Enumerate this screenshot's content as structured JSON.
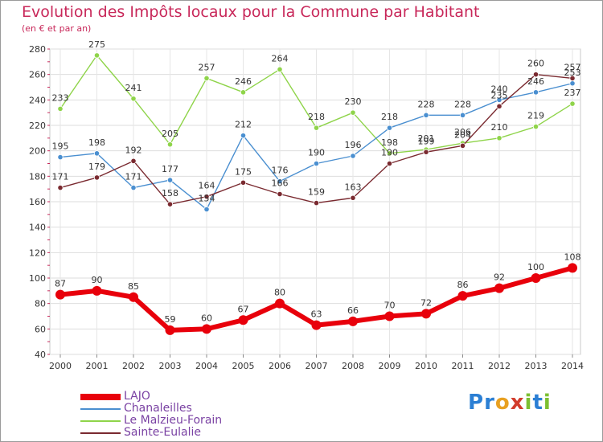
{
  "header": {
    "title": "Evolution des Impôts locaux pour la Commune par Habitant",
    "subtitle": "(en € et par an)"
  },
  "logo": {
    "text": "Proxiti",
    "letters": [
      {
        "ch": "P",
        "color": "#2b7fd4"
      },
      {
        "ch": "r",
        "color": "#2b7fd4"
      },
      {
        "ch": "o",
        "color": "#e8a020"
      },
      {
        "ch": "x",
        "color": "#d23c2c"
      },
      {
        "ch": "i",
        "color": "#7cbf32"
      },
      {
        "ch": "t",
        "color": "#2b7fd4"
      },
      {
        "ch": "i",
        "color": "#7cbf32"
      }
    ]
  },
  "chart_data": {
    "type": "line",
    "title": "Evolution des Impôts locaux pour la Commune par Habitant",
    "subtitle": "(en € et par an)",
    "xlabel": "",
    "ylabel": "",
    "x": [
      "2000",
      "2001",
      "2002",
      "2003",
      "2004",
      "2005",
      "2006",
      "2007",
      "2008",
      "2009",
      "2010",
      "2011",
      "2012",
      "2013",
      "2014"
    ],
    "ylim": [
      40,
      280
    ],
    "yticks": [
      40,
      60,
      80,
      100,
      120,
      140,
      160,
      180,
      200,
      220,
      240,
      260,
      280
    ],
    "grid": true,
    "legend_position": "bottom-left",
    "series": [
      {
        "name": "LAJO",
        "color": "#e8000b",
        "values": [
          87,
          90,
          85,
          59,
          60,
          67,
          80,
          63,
          66,
          70,
          72,
          86,
          92,
          100,
          108
        ]
      },
      {
        "name": "Chanaleilles",
        "color": "#4a8fd0",
        "values": [
          195,
          198,
          171,
          177,
          154,
          212,
          176,
          190,
          196,
          218,
          228,
          228,
          240,
          246,
          253
        ]
      },
      {
        "name": "Le Malzieu-Forain",
        "color": "#8fd44a",
        "values": [
          233,
          275,
          241,
          205,
          257,
          246,
          264,
          218,
          230,
          198,
          201,
          206,
          210,
          219,
          237
        ]
      },
      {
        "name": "Sainte-Eulalie",
        "color": "#7a2a30",
        "values": [
          171,
          179,
          192,
          158,
          164,
          175,
          166,
          159,
          163,
          190,
          199,
          204,
          235,
          260,
          257
        ]
      }
    ],
    "data_labels": [
      {
        "series": 0,
        "labels": [
          "87",
          "90",
          "85",
          "59",
          "60",
          "67",
          "80",
          "63",
          "66",
          "70",
          "72",
          "86",
          "92",
          "100",
          "108"
        ]
      },
      {
        "series": 1,
        "labels": [
          "195",
          "198",
          "171",
          "177",
          "154",
          "212",
          "176",
          "190",
          "196",
          "218",
          "228",
          "228",
          "240",
          "246",
          "253"
        ]
      },
      {
        "series": 2,
        "labels": [
          "233",
          "275",
          "241",
          "205",
          "257",
          "246",
          "264",
          "218",
          "230",
          "198",
          "201",
          "206",
          "210",
          "219",
          "237"
        ]
      },
      {
        "series": 3,
        "labels": [
          "171",
          "179",
          "192",
          "158",
          "164",
          "175",
          "166",
          "159",
          "163",
          "190",
          "199",
          "204",
          "235",
          "260",
          "257"
        ]
      }
    ]
  }
}
